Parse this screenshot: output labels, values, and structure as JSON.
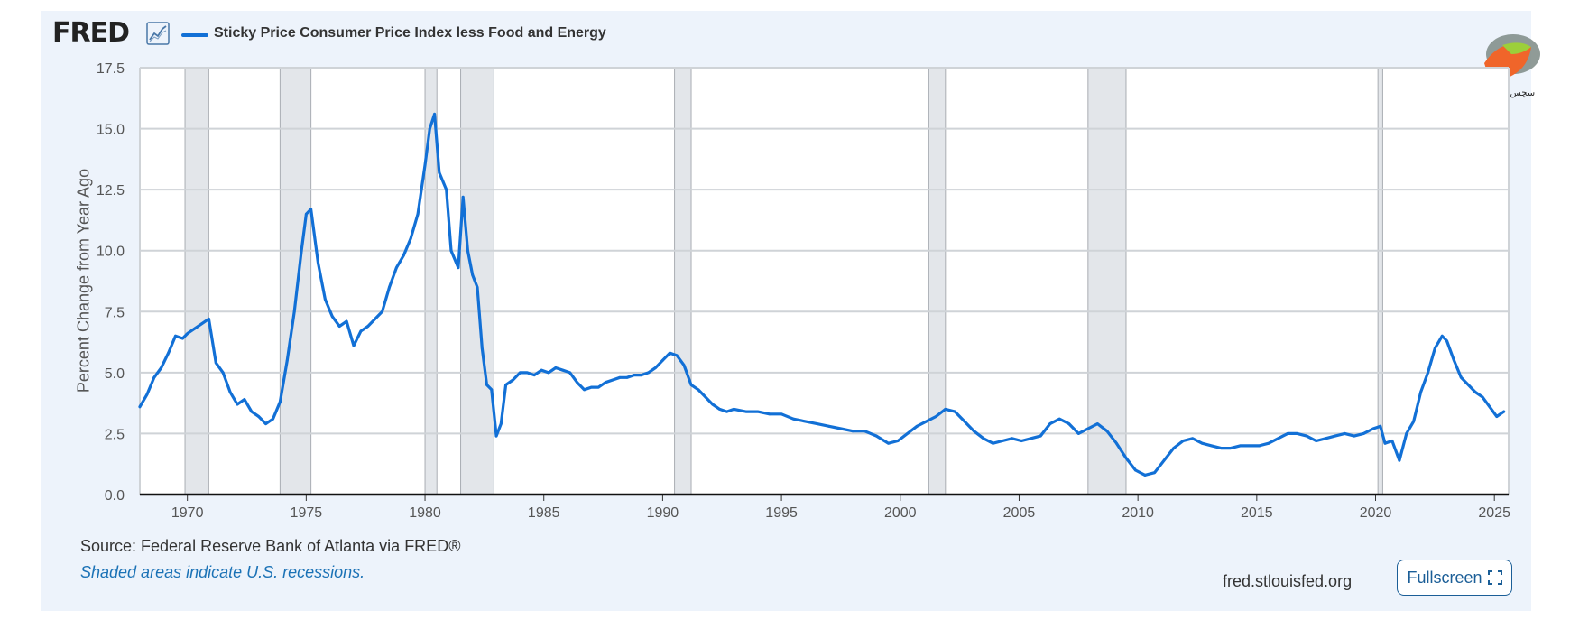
{
  "header": {
    "logo_text": "FRED",
    "series_label": "Sticky Price Consumer Price Index less Food and Energy",
    "series_color": "#1270d6"
  },
  "chart_data": {
    "type": "line",
    "title": "Sticky Price Consumer Price Index less Food and Energy",
    "xlabel": "",
    "ylabel": "Percent Change from Year Ago",
    "xlim": [
      1968.0,
      2025.6
    ],
    "ylim": [
      0,
      17.5
    ],
    "yticks": [
      "0.0",
      "2.5",
      "5.0",
      "7.5",
      "10.0",
      "12.5",
      "15.0",
      "17.5"
    ],
    "xticks": [
      "1970",
      "1975",
      "1980",
      "1985",
      "1990",
      "1995",
      "2000",
      "2005",
      "2010",
      "2015",
      "2020",
      "2025"
    ],
    "recessions": [
      [
        1969.9,
        1970.9
      ],
      [
        1973.9,
        1975.2
      ],
      [
        1980.0,
        1980.5
      ],
      [
        1981.5,
        1982.9
      ],
      [
        1990.5,
        1991.2
      ],
      [
        2001.2,
        2001.9
      ],
      [
        2007.9,
        2009.5
      ],
      [
        2020.1,
        2020.3
      ]
    ],
    "series": [
      {
        "name": "Sticky Price Consumer Price Index less Food and Energy",
        "color": "#1270d6",
        "x": [
          1968.0,
          1968.3,
          1968.6,
          1968.9,
          1969.2,
          1969.5,
          1969.8,
          1970.0,
          1970.3,
          1970.6,
          1970.9,
          1971.2,
          1971.5,
          1971.8,
          1972.1,
          1972.4,
          1972.7,
          1973.0,
          1973.3,
          1973.6,
          1973.9,
          1974.2,
          1974.5,
          1974.8,
          1975.0,
          1975.2,
          1975.5,
          1975.8,
          1976.1,
          1976.4,
          1976.7,
          1977.0,
          1977.3,
          1977.6,
          1977.9,
          1978.2,
          1978.5,
          1978.8,
          1979.1,
          1979.4,
          1979.7,
          1980.0,
          1980.2,
          1980.4,
          1980.6,
          1980.9,
          1981.1,
          1981.4,
          1981.6,
          1981.8,
          1982.0,
          1982.2,
          1982.4,
          1982.6,
          1982.8,
          1983.0,
          1983.2,
          1983.4,
          1983.7,
          1984.0,
          1984.3,
          1984.6,
          1984.9,
          1985.2,
          1985.5,
          1985.8,
          1986.1,
          1986.4,
          1986.7,
          1987.0,
          1987.3,
          1987.6,
          1987.9,
          1988.2,
          1988.5,
          1988.8,
          1989.1,
          1989.4,
          1989.7,
          1990.0,
          1990.3,
          1990.6,
          1990.9,
          1991.2,
          1991.5,
          1991.8,
          1992.1,
          1992.4,
          1992.7,
          1993.0,
          1993.5,
          1994.0,
          1994.5,
          1995.0,
          1995.5,
          1996.0,
          1996.5,
          1997.0,
          1997.5,
          1998.0,
          1998.5,
          1999.0,
          1999.5,
          1999.9,
          2000.3,
          2000.7,
          2001.1,
          2001.5,
          2001.9,
          2002.3,
          2002.7,
          2003.1,
          2003.5,
          2003.9,
          2004.3,
          2004.7,
          2005.1,
          2005.5,
          2005.9,
          2006.3,
          2006.7,
          2007.1,
          2007.5,
          2007.9,
          2008.3,
          2008.7,
          2009.1,
          2009.5,
          2009.9,
          2010.3,
          2010.7,
          2011.1,
          2011.5,
          2011.9,
          2012.3,
          2012.7,
          2013.1,
          2013.5,
          2013.9,
          2014.3,
          2014.7,
          2015.1,
          2015.5,
          2015.9,
          2016.3,
          2016.7,
          2017.1,
          2017.5,
          2017.9,
          2018.3,
          2018.7,
          2019.1,
          2019.5,
          2019.9,
          2020.2,
          2020.4,
          2020.7,
          2021.0,
          2021.3,
          2021.6,
          2021.9,
          2022.2,
          2022.5,
          2022.8,
          2023.0,
          2023.3,
          2023.6,
          2023.9,
          2024.2,
          2024.5,
          2024.8,
          2025.1,
          2025.4
        ],
        "values": [
          3.6,
          4.1,
          4.8,
          5.2,
          5.8,
          6.5,
          6.4,
          6.6,
          6.8,
          7.0,
          7.2,
          5.4,
          5.0,
          4.2,
          3.7,
          3.9,
          3.4,
          3.2,
          2.9,
          3.1,
          3.8,
          5.5,
          7.5,
          10.0,
          11.5,
          11.7,
          9.5,
          8.0,
          7.3,
          6.9,
          7.1,
          6.1,
          6.7,
          6.9,
          7.2,
          7.5,
          8.5,
          9.3,
          9.8,
          10.5,
          11.5,
          13.5,
          15.0,
          15.6,
          13.2,
          12.5,
          10.0,
          9.3,
          12.2,
          10.0,
          9.0,
          8.5,
          6.0,
          4.5,
          4.3,
          2.4,
          2.9,
          4.5,
          4.7,
          5.0,
          5.0,
          4.9,
          5.1,
          5.0,
          5.2,
          5.1,
          5.0,
          4.6,
          4.3,
          4.4,
          4.4,
          4.6,
          4.7,
          4.8,
          4.8,
          4.9,
          4.9,
          5.0,
          5.2,
          5.5,
          5.8,
          5.7,
          5.3,
          4.5,
          4.3,
          4.0,
          3.7,
          3.5,
          3.4,
          3.5,
          3.4,
          3.4,
          3.3,
          3.3,
          3.1,
          3.0,
          2.9,
          2.8,
          2.7,
          2.6,
          2.6,
          2.4,
          2.1,
          2.2,
          2.5,
          2.8,
          3.0,
          3.2,
          3.5,
          3.4,
          3.0,
          2.6,
          2.3,
          2.1,
          2.2,
          2.3,
          2.2,
          2.3,
          2.4,
          2.9,
          3.1,
          2.9,
          2.5,
          2.7,
          2.9,
          2.6,
          2.1,
          1.5,
          1.0,
          0.8,
          0.9,
          1.4,
          1.9,
          2.2,
          2.3,
          2.1,
          2.0,
          1.9,
          1.9,
          2.0,
          2.0,
          2.0,
          2.1,
          2.3,
          2.5,
          2.5,
          2.4,
          2.2,
          2.3,
          2.4,
          2.5,
          2.4,
          2.5,
          2.7,
          2.8,
          2.1,
          2.2,
          1.4,
          2.5,
          3.0,
          4.2,
          5.0,
          6.0,
          6.5,
          6.3,
          5.5,
          4.8,
          4.5,
          4.2,
          4.0,
          3.6,
          3.2,
          3.4
        ]
      }
    ]
  },
  "footer": {
    "source": "Source: Federal Reserve Bank of Atlanta via FRED®",
    "note": "Shaded areas indicate U.S. recessions.",
    "site": "fred.stlouisfed.org",
    "fullscreen_label": "Fullscreen"
  },
  "watermark": {
    "text": "سچس بلوکر"
  }
}
